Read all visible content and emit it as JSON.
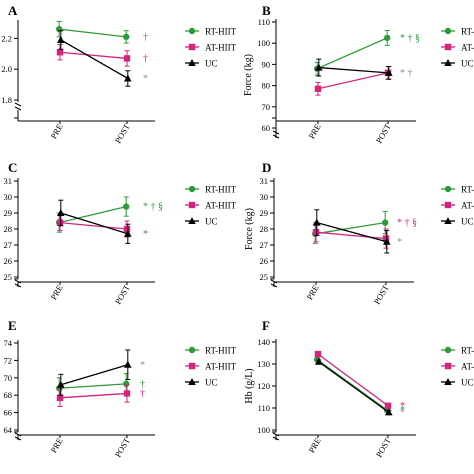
{
  "chart_data": [
    {
      "panel": "A",
      "type": "line",
      "categories": [
        "PRE",
        "POST"
      ],
      "ylabel": "",
      "ylim": [
        0,
        2.4
      ],
      "y_ticks": [
        "2.2",
        "2.0",
        "1.8"
      ],
      "axis_break": true,
      "legend_position": "top-right",
      "series": [
        {
          "name": "RT-HIIT",
          "color": "#2e9b3a",
          "marker": "circle",
          "values": [
            2.26,
            2.21
          ],
          "errors": [
            0.05,
            0.04
          ]
        },
        {
          "name": "AT-HIIT",
          "color": "#d6247e",
          "marker": "square",
          "values": [
            2.11,
            2.07
          ],
          "errors": [
            0.05,
            0.05
          ]
        },
        {
          "name": "UC",
          "color": "#000000",
          "marker": "triangle",
          "values": [
            2.19,
            1.94
          ],
          "errors": [
            0.06,
            0.05
          ]
        }
      ],
      "annotations": [
        {
          "series": "RT-HIIT",
          "text": "†",
          "color": "#2e9b3a"
        },
        {
          "series": "AT-HIIT",
          "text": "†",
          "color": "#d6247e"
        },
        {
          "series": "UC",
          "text": "*",
          "color": "#8c8c8c"
        }
      ]
    },
    {
      "panel": "B",
      "type": "line",
      "categories": [
        "PRE",
        "POST"
      ],
      "ylabel": "Force (kg)",
      "ylim": [
        60,
        110
      ],
      "y_ticks": [
        "110",
        "100",
        "90",
        "80",
        "70",
        "60"
      ],
      "axis_break": true,
      "legend_position": "top-right",
      "series": [
        {
          "name": "RT-HIIT",
          "color": "#2e9b3a",
          "marker": "circle",
          "values": [
            88,
            102.5
          ],
          "errors": [
            3,
            3.5
          ]
        },
        {
          "name": "AT-HIIT",
          "color": "#d6247e",
          "marker": "square",
          "values": [
            78.5,
            86
          ],
          "errors": [
            3,
            3
          ]
        },
        {
          "name": "UC",
          "color": "#000000",
          "marker": "triangle",
          "values": [
            88.5,
            86
          ],
          "errors": [
            4,
            3
          ]
        }
      ],
      "annotations": [
        {
          "series": "RT-HIIT",
          "text": "* † §",
          "color": "#2e9b3a"
        },
        {
          "series": "UC",
          "text": "* †",
          "color": "#8c8c8c"
        }
      ]
    },
    {
      "panel": "C",
      "type": "line",
      "categories": [
        "PRE",
        "POST"
      ],
      "ylabel": "",
      "ylim": [
        25,
        31
      ],
      "y_ticks": [
        "31",
        "30",
        "29",
        "28",
        "27",
        "26",
        "25"
      ],
      "axis_break": true,
      "legend_position": "top-right",
      "series": [
        {
          "name": "RT-HIIT",
          "color": "#2e9b3a",
          "marker": "circle",
          "values": [
            28.4,
            29.4
          ],
          "errors": [
            0.6,
            0.6
          ]
        },
        {
          "name": "AT-HIIT",
          "color": "#d6247e",
          "marker": "square",
          "values": [
            28.4,
            28.0
          ],
          "errors": [
            0.5,
            0.5
          ]
        },
        {
          "name": "UC",
          "color": "#000000",
          "marker": "triangle",
          "values": [
            29.0,
            27.7
          ],
          "errors": [
            0.8,
            0.6
          ]
        }
      ],
      "annotations": [
        {
          "series": "RT-HIIT",
          "text": "* † §",
          "color": "#2e9b3a"
        },
        {
          "series": "UC",
          "text": "*",
          "color": "#2e9b3a"
        }
      ]
    },
    {
      "panel": "D",
      "type": "line",
      "categories": [
        "PRE",
        "POST"
      ],
      "ylabel": "Force (kg)",
      "ylim": [
        25,
        31
      ],
      "y_ticks": [
        "31",
        "30",
        "29",
        "28",
        "27",
        "26",
        "25"
      ],
      "axis_break": true,
      "legend_position": "top-right",
      "series": [
        {
          "name": "RT-HIIT",
          "color": "#2e9b3a",
          "marker": "circle",
          "values": [
            27.7,
            28.4
          ],
          "errors": [
            0.6,
            0.7
          ]
        },
        {
          "name": "AT-HIIT",
          "color": "#d6247e",
          "marker": "square",
          "values": [
            27.8,
            27.4
          ],
          "errors": [
            0.6,
            0.6
          ]
        },
        {
          "name": "UC",
          "color": "#000000",
          "marker": "triangle",
          "values": [
            28.4,
            27.2
          ],
          "errors": [
            0.8,
            0.7
          ]
        }
      ],
      "annotations": [
        {
          "series": "RT-HIIT",
          "text": "* † §",
          "color": "#d6247e"
        },
        {
          "series": "UC",
          "text": "*",
          "color": "#8c8c8c"
        }
      ]
    },
    {
      "panel": "E",
      "type": "line",
      "categories": [
        "PRE",
        "POST"
      ],
      "ylabel": "",
      "ylim": [
        64,
        74
      ],
      "y_ticks": [
        "74",
        "72",
        "70",
        "68",
        "66",
        "64"
      ],
      "axis_break": true,
      "legend_position": "top-right",
      "series": [
        {
          "name": "RT-HIIT",
          "color": "#2e9b3a",
          "marker": "circle",
          "values": [
            68.8,
            69.3
          ],
          "errors": [
            1.2,
            1.2
          ]
        },
        {
          "name": "AT-HIIT",
          "color": "#d6247e",
          "marker": "square",
          "values": [
            67.7,
            68.2
          ],
          "errors": [
            1.0,
            1.0
          ]
        },
        {
          "name": "UC",
          "color": "#000000",
          "marker": "triangle",
          "values": [
            69.2,
            71.5
          ],
          "errors": [
            1.2,
            1.7
          ]
        }
      ],
      "annotations": [
        {
          "series": "UC",
          "text": "*",
          "color": "#8c8c8c"
        },
        {
          "series": "RT-HIIT",
          "text": "†",
          "color": "#2e9b3a"
        },
        {
          "series": "AT-HIIT",
          "text": "†",
          "color": "#d6247e"
        }
      ]
    },
    {
      "panel": "F",
      "type": "line",
      "categories": [
        "PRE",
        "POST"
      ],
      "ylabel": "Hb (g/L)",
      "ylim": [
        100,
        140
      ],
      "y_ticks": [
        "140",
        "130",
        "120",
        "110",
        "100"
      ],
      "axis_break": true,
      "legend_position": "top-right",
      "series": [
        {
          "name": "RT-HIIT",
          "color": "#2e9b3a",
          "marker": "circle",
          "values": [
            132,
            109
          ],
          "errors": [
            0.8,
            0.8
          ]
        },
        {
          "name": "AT-HIIT",
          "color": "#d6247e",
          "marker": "square",
          "values": [
            134.5,
            111
          ],
          "errors": [
            0.8,
            0.8
          ]
        },
        {
          "name": "UC",
          "color": "#000000",
          "marker": "triangle",
          "values": [
            131,
            108
          ],
          "errors": [
            0.8,
            0.8
          ]
        }
      ],
      "annotations": [
        {
          "series": "AT-HIIT",
          "text": "*",
          "color": "#d6247e"
        },
        {
          "series": "RT-HIIT",
          "text": "*",
          "color": "#2e9b3a"
        },
        {
          "series": "UC",
          "text": "*",
          "color": "#8c8c8c"
        }
      ]
    }
  ]
}
